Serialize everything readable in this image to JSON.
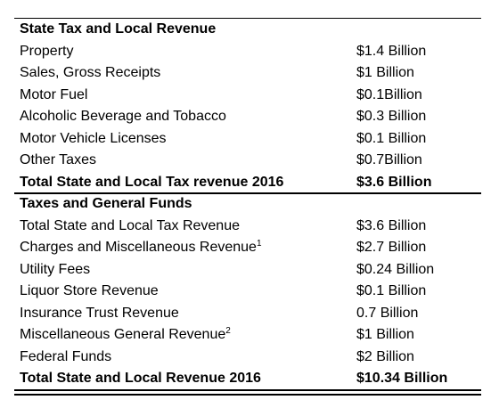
{
  "sections": [
    {
      "title": "State Tax and Local Revenue",
      "rows": [
        {
          "label": "Property",
          "value": "$1.4 Billion"
        },
        {
          "label": "Sales, Gross Receipts",
          "value": "$1 Billion"
        },
        {
          "label": "Motor Fuel",
          "value": "$0.1Billion"
        },
        {
          "label": "Alcoholic Beverage and Tobacco",
          "value": "$0.3 Billion"
        },
        {
          "label": "Motor Vehicle Licenses",
          "value": "$0.1 Billion"
        },
        {
          "label": "Other Taxes",
          "value": "$0.7Billion"
        }
      ],
      "total": {
        "label": "Total State and Local Tax revenue 2016",
        "value": "$3.6 Billion"
      }
    },
    {
      "title": "Taxes and General Funds",
      "rows": [
        {
          "label": "Total State and Local Tax Revenue",
          "value": "$3.6 Billion"
        },
        {
          "label": "Charges and Miscellaneous Revenue",
          "note": "1",
          "value": "$2.7 Billion"
        },
        {
          "label": "Utility Fees",
          "value": "$0.24 Billion"
        },
        {
          "label": "Liquor Store Revenue",
          "value": "$0.1 Billion"
        },
        {
          "label": "Insurance Trust Revenue",
          "value": "0.7 Billion"
        },
        {
          "label": "Miscellaneous General Revenue",
          "note": "2",
          "value": "$1 Billion"
        },
        {
          "label": "Federal Funds",
          "value": "$2 Billion"
        }
      ],
      "total": {
        "label": "Total State and Local Revenue 2016",
        "value": "$10.34 Billion"
      }
    }
  ]
}
